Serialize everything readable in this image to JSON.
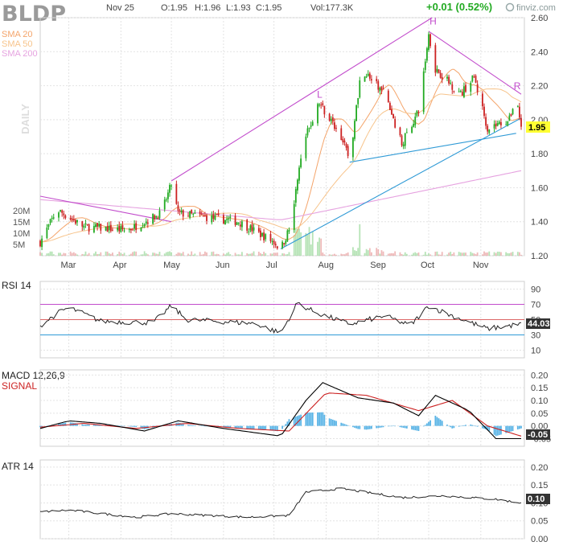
{
  "header": {
    "ticker": "BLDP",
    "date": "Nov 25",
    "open": "O:1.95",
    "high": "H:1.96",
    "low": "L:1.93",
    "close": "C:1.95",
    "volume": "Vol:177.3K",
    "change": "+0.01 (0.52%)",
    "watermark": "finviz.com"
  },
  "colors": {
    "up": "#22aa22",
    "down": "#cc2222",
    "sma20": "#f4a46a",
    "sma50": "#f7c48c",
    "sma200": "#e6a3e0",
    "trend_purple": "#c24ccc",
    "trend_blue": "#2f9ad6",
    "macd_line": "#000000",
    "signal_line": "#cc2222",
    "histogram": "#5ab4e6",
    "price_badge": "#ffff33"
  },
  "chart_data": [
    {
      "type": "candlestick",
      "panel": "price",
      "side_label": "DAILY",
      "legend": [
        "SMA 20",
        "SMA 50",
        "SMA 200"
      ],
      "x_months": [
        "Mar",
        "Apr",
        "May",
        "Jun",
        "Jul",
        "Aug",
        "Sep",
        "Oct",
        "Nov"
      ],
      "y_ticks": [
        "2.60",
        "2.40",
        "2.20",
        "2.00",
        "1.80",
        "1.60",
        "1.40",
        "1.20"
      ],
      "ylim": [
        1.2,
        2.6
      ],
      "last_price": "1.95",
      "volume_ticks": [
        "20M",
        "15M",
        "10M",
        "5M"
      ],
      "volume_max_m": 25,
      "pattern_labels": [
        "L",
        "H",
        "R"
      ],
      "key_points": [
        {
          "date": "Feb 12",
          "close": 1.28
        },
        {
          "date": "Feb 22",
          "close": 1.47
        },
        {
          "date": "Mar 10",
          "close": 1.37
        },
        {
          "date": "Apr 05",
          "close": 1.35
        },
        {
          "date": "Apr 25",
          "close": 1.45
        },
        {
          "date": "May 01",
          "close": 1.62
        },
        {
          "date": "May 05",
          "close": 1.45
        },
        {
          "date": "Jun 10",
          "close": 1.4
        },
        {
          "date": "Jul 01",
          "close": 1.28
        },
        {
          "date": "Jul 05",
          "close": 1.24
        },
        {
          "date": "Jul 12",
          "close": 1.4
        },
        {
          "date": "Jul 15",
          "close": 1.67
        },
        {
          "date": "Jul 20",
          "close": 1.9
        },
        {
          "date": "Jul 28",
          "close": 2.1
        },
        {
          "date": "Aug 10",
          "close": 1.9
        },
        {
          "date": "Aug 15",
          "close": 1.76
        },
        {
          "date": "Aug 22",
          "close": 2.3
        },
        {
          "date": "Sep 05",
          "close": 2.15
        },
        {
          "date": "Sep 15",
          "close": 1.86
        },
        {
          "date": "Sep 25",
          "close": 2.05
        },
        {
          "date": "Oct 01",
          "close": 2.5
        },
        {
          "date": "Oct 05",
          "close": 2.3
        },
        {
          "date": "Oct 20",
          "close": 2.15
        },
        {
          "date": "Oct 28",
          "close": 2.25
        },
        {
          "date": "Nov 05",
          "close": 1.95
        },
        {
          "date": "Nov 18",
          "close": 2.0
        },
        {
          "date": "Nov 22",
          "close": 2.15
        },
        {
          "date": "Nov 25",
          "close": 1.95
        }
      ]
    },
    {
      "type": "line",
      "panel": "rsi",
      "title": "RSI 14",
      "y_ticks": [
        "90",
        "70",
        "50",
        "30",
        "10"
      ],
      "ylim": [
        0,
        100
      ],
      "levels": [
        70,
        50,
        30
      ],
      "last_value": "44.03",
      "key_points": [
        {
          "date": "Feb 12",
          "value": 42
        },
        {
          "date": "Feb 22",
          "value": 58
        },
        {
          "date": "Mar 01",
          "value": 66
        },
        {
          "date": "Mar 20",
          "value": 48
        },
        {
          "date": "Apr 20",
          "value": 46
        },
        {
          "date": "May 01",
          "value": 68
        },
        {
          "date": "May 10",
          "value": 50
        },
        {
          "date": "Jun 20",
          "value": 45
        },
        {
          "date": "Jul 05",
          "value": 32
        },
        {
          "date": "Jul 15",
          "value": 72
        },
        {
          "date": "Jul 25",
          "value": 60
        },
        {
          "date": "Aug 15",
          "value": 44
        },
        {
          "date": "Sep 05",
          "value": 55
        },
        {
          "date": "Sep 20",
          "value": 42
        },
        {
          "date": "Oct 01",
          "value": 68
        },
        {
          "date": "Oct 15",
          "value": 55
        },
        {
          "date": "Nov 05",
          "value": 38
        },
        {
          "date": "Nov 25",
          "value": 44
        }
      ]
    },
    {
      "type": "line",
      "panel": "macd",
      "title": "MACD 12,26,9",
      "signal_label": "SIGNAL",
      "y_ticks": [
        "0.20",
        "0.15",
        "0.10",
        "0.05",
        "0.00",
        "-0.05"
      ],
      "ylim": [
        -0.08,
        0.22
      ],
      "last_value": "-0.05",
      "series": [
        {
          "key": "macd",
          "points": [
            {
              "date": "Feb 12",
              "value": -0.01
            },
            {
              "date": "Mar 01",
              "value": 0.02
            },
            {
              "date": "Mar 20",
              "value": 0.01
            },
            {
              "date": "Apr 15",
              "value": -0.02
            },
            {
              "date": "May 05",
              "value": 0.02
            },
            {
              "date": "Jun 01",
              "value": -0.01
            },
            {
              "date": "Jul 05",
              "value": -0.04
            },
            {
              "date": "Jul 20",
              "value": 0.1
            },
            {
              "date": "Jul 30",
              "value": 0.17
            },
            {
              "date": "Aug 20",
              "value": 0.11
            },
            {
              "date": "Sep 10",
              "value": 0.09
            },
            {
              "date": "Sep 25",
              "value": 0.04
            },
            {
              "date": "Oct 05",
              "value": 0.12
            },
            {
              "date": "Oct 25",
              "value": 0.06
            },
            {
              "date": "Nov 10",
              "value": -0.05
            },
            {
              "date": "Nov 25",
              "value": -0.05
            }
          ]
        },
        {
          "key": "signal",
          "points": [
            {
              "date": "Feb 12",
              "value": -0.005
            },
            {
              "date": "Mar 10",
              "value": 0.01
            },
            {
              "date": "Apr 10",
              "value": -0.01
            },
            {
              "date": "May 10",
              "value": 0.01
            },
            {
              "date": "Jun 10",
              "value": -0.01
            },
            {
              "date": "Jul 10",
              "value": -0.02
            },
            {
              "date": "Aug 01",
              "value": 0.13
            },
            {
              "date": "Aug 25",
              "value": 0.12
            },
            {
              "date": "Sep 25",
              "value": 0.06
            },
            {
              "date": "Oct 15",
              "value": 0.1
            },
            {
              "date": "Nov 05",
              "value": 0.0
            },
            {
              "date": "Nov 25",
              "value": -0.04
            }
          ]
        }
      ]
    },
    {
      "type": "line",
      "panel": "atr",
      "title": "ATR 14",
      "y_ticks": [
        "0.20",
        "0.15",
        "0.10",
        "0.05",
        "0.00"
      ],
      "ylim": [
        0,
        0.22
      ],
      "last_value": "0.10",
      "key_points": [
        {
          "date": "Feb 12",
          "value": 0.075
        },
        {
          "date": "Mar 01",
          "value": 0.08
        },
        {
          "date": "Apr 10",
          "value": 0.06
        },
        {
          "date": "May 01",
          "value": 0.07
        },
        {
          "date": "Jun 15",
          "value": 0.06
        },
        {
          "date": "Jul 10",
          "value": 0.065
        },
        {
          "date": "Jul 20",
          "value": 0.13
        },
        {
          "date": "Aug 10",
          "value": 0.14
        },
        {
          "date": "Sep 15",
          "value": 0.115
        },
        {
          "date": "Oct 10",
          "value": 0.12
        },
        {
          "date": "Nov 10",
          "value": 0.11
        },
        {
          "date": "Nov 25",
          "value": 0.1
        }
      ]
    }
  ]
}
